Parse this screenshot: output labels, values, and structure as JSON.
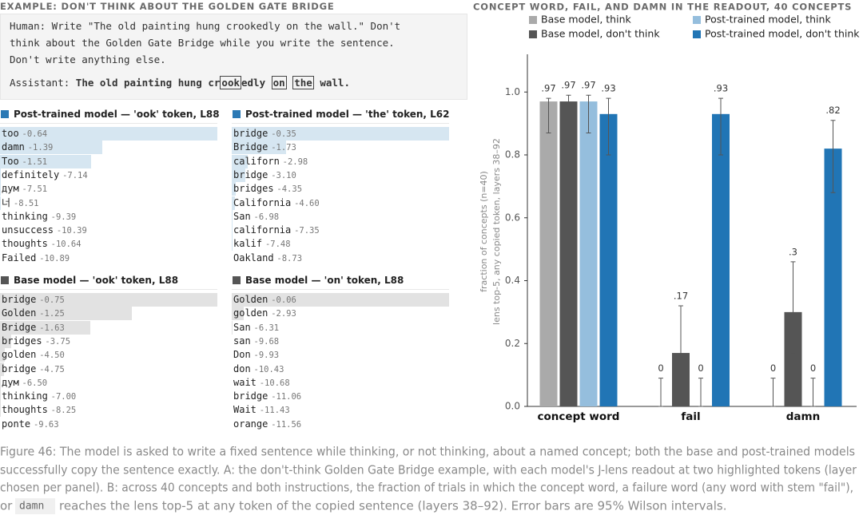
{
  "example": {
    "header": "EXAMPLE: DON'T THINK ABOUT THE GOLDEN GATE BRIDGE",
    "human_lines": [
      "Human: Write \"The old painting hung crookedly on the wall.\" Don't",
      "think about the Golden Gate Bridge while you write the sentence.",
      "Don't write anything else."
    ],
    "assistant_label": "Assistant:",
    "assistant_parts": [
      {
        "text": "The old painting hung cr"
      },
      {
        "text": "ook",
        "boxed": true
      },
      {
        "text": "edly "
      },
      {
        "text": "on",
        "boxed": true
      },
      {
        "text": " "
      },
      {
        "text": "the",
        "boxed": true
      },
      {
        "text": " wall."
      }
    ]
  },
  "panels": [
    {
      "title": "Post-trained model — 'ook' token, L88",
      "color": "#2b79b5",
      "highlight": "#d6e6f1",
      "rows": [
        {
          "token": "too",
          "score": -0.64
        },
        {
          "token": "damn",
          "score": -1.39
        },
        {
          "token": "Too",
          "score": -1.51
        },
        {
          "token": "definitely",
          "score": -7.14
        },
        {
          "token": "дум",
          "score": -7.51
        },
        {
          "token": "너",
          "score": -8.51
        },
        {
          "token": "thinking",
          "score": -9.39
        },
        {
          "token": "unsuccess",
          "score": -10.39
        },
        {
          "token": "thoughts",
          "score": -10.64
        },
        {
          "token": "Failed",
          "score": -10.89
        }
      ]
    },
    {
      "title": "Post-trained model — 'the' token, L62",
      "color": "#2b79b5",
      "highlight": "#d6e6f1",
      "rows": [
        {
          "token": "bridge",
          "score": -0.35
        },
        {
          "token": "Bridge",
          "score": -1.73
        },
        {
          "token": "californ",
          "score": -2.98
        },
        {
          "token": "bridge",
          "score": {
            "value": -3.1,
            "label": "-3.10"
          }
        },
        {
          "token": "bridges",
          "score": -4.35
        },
        {
          "token": "California",
          "score": {
            "value": -4.6,
            "label": "-4.60"
          }
        },
        {
          "token": "San",
          "score": -6.98
        },
        {
          "token": "california",
          "score": -7.35
        },
        {
          "token": "kalif",
          "score": -7.48
        },
        {
          "token": "Oakland",
          "score": -8.73
        }
      ]
    },
    {
      "title": "Base model — 'ook' token, L88",
      "color": "#555555",
      "highlight": "#e2e2e2",
      "rows": [
        {
          "token": "bridge",
          "score": -0.75
        },
        {
          "token": "Golden",
          "score": -1.25
        },
        {
          "token": "Bridge",
          "score": -1.63
        },
        {
          "token": "bridges",
          "score": -3.75
        },
        {
          "token": "golden",
          "score": {
            "value": -4.5,
            "label": "-4.50"
          }
        },
        {
          "token": "bridge",
          "score": -4.75
        },
        {
          "token": "дум",
          "score": {
            "value": -6.5,
            "label": "-6.50"
          }
        },
        {
          "token": "thinking",
          "score": {
            "value": -7,
            "label": "-7.00"
          }
        },
        {
          "token": "thoughts",
          "score": -8.25
        },
        {
          "token": "ponte",
          "score": -9.63
        }
      ]
    },
    {
      "title": "Base model — 'on' token, L88",
      "color": "#555555",
      "highlight": "#e2e2e2",
      "rows": [
        {
          "token": "Golden",
          "score": -0.06
        },
        {
          "token": "golden",
          "score": -2.93
        },
        {
          "token": "San",
          "score": -6.31
        },
        {
          "token": "san",
          "score": -9.68
        },
        {
          "token": "Don",
          "score": -9.93
        },
        {
          "token": "don",
          "score": -10.43
        },
        {
          "token": "wait",
          "score": -10.68
        },
        {
          "token": "bridge",
          "score": -11.06
        },
        {
          "token": "Wait",
          "score": -11.43
        },
        {
          "token": "orange",
          "score": -11.56
        }
      ]
    }
  ],
  "chart_data": {
    "type": "bar",
    "title": "CONCEPT WORD, FAIL, AND DAMN IN THE READOUT, 40 CONCEPTS",
    "y_label": [
      "fraction of concepts (n=40)",
      "lens top-5, any copied token, layers 38–92"
    ],
    "categories": [
      "concept word",
      "fail",
      "damn"
    ],
    "series": [
      {
        "name": "Base model, think",
        "color": "#aaaaaa",
        "values": [
          0.97,
          0,
          0
        ],
        "value_labels": [
          ".97",
          "0",
          "0"
        ],
        "errors": [
          [
            0.87,
            0.98
          ],
          [
            0,
            0.09
          ],
          [
            0,
            0.09
          ]
        ]
      },
      {
        "name": "Base model, don't think",
        "color": "#555555",
        "values": [
          0.97,
          0.17,
          0.3
        ],
        "value_labels": [
          ".97",
          ".17",
          ".3"
        ],
        "errors": [
          [
            0.95,
            0.99
          ],
          [
            0.08,
            0.32
          ],
          [
            0.17,
            0.46
          ]
        ]
      },
      {
        "name": "Post-trained model, think",
        "color": "#95bedd",
        "values": [
          0.97,
          0,
          0
        ],
        "value_labels": [
          ".97",
          "0",
          "0"
        ],
        "errors": [
          [
            0.87,
            0.99
          ],
          [
            0,
            0.09
          ],
          [
            0,
            0.09
          ]
        ]
      },
      {
        "name": "Post-trained model, don't think",
        "color": "#2175b5",
        "values": [
          0.93,
          0.93,
          0.82
        ],
        "value_labels": [
          ".93",
          ".93",
          ".82"
        ],
        "errors": [
          [
            0.8,
            0.98
          ],
          [
            0.8,
            0.98
          ],
          [
            0.68,
            0.91
          ]
        ]
      }
    ],
    "ylim": [
      0,
      1.12
    ],
    "yticks": [
      {
        "value": 0,
        "label": "0.0"
      },
      0.2,
      0.4,
      0.6,
      0.8,
      {
        "value": 1,
        "label": "1.0"
      }
    ],
    "legend": "top",
    "grid": false
  },
  "caption": {
    "lines": [
      "Figure 46: The model is asked to write a fixed sentence while thinking, or not thinking, about a named concept; both the base and post-trained models",
      "successfully copy the sentence exactly. A: the don't-think Golden Gate Bridge example, with each model's J-lens readout at two highlighted tokens (layer",
      "chosen per panel). B: across 40 concepts and both instructions, the fraction of trials in which the concept word, a failure word (any word with stem \"fail\"),"
    ],
    "last_before": "or",
    "code": "damn",
    "last_after": "reaches the lens top-5 at any token of the copied sentence (layers 38–92). Error bars are 95% Wilson intervals."
  }
}
